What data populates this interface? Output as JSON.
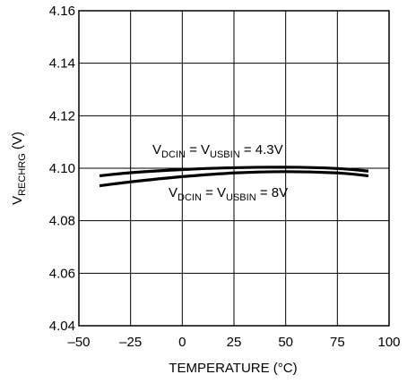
{
  "chart_data": {
    "type": "line",
    "xlabel": "TEMPERATURE (°C)",
    "ylabel": {
      "main": "V",
      "sub": "RECHRG",
      "suffix": " (V)"
    },
    "xlim": [
      -50,
      100
    ],
    "ylim": [
      4.04,
      4.16
    ],
    "xticks": [
      "–50",
      "–25",
      "0",
      "25",
      "50",
      "75",
      "100"
    ],
    "yticks": [
      "4.04",
      "4.06",
      "4.08",
      "4.10",
      "4.12",
      "4.14",
      "4.16"
    ],
    "grid": true,
    "series": [
      {
        "name": "V_DCIN = V_USBIN = 4.3V",
        "x": [
          -40,
          -25,
          0,
          25,
          50,
          75,
          90
        ],
        "y": [
          4.0971,
          4.0983,
          4.0995,
          4.1002,
          4.1004,
          4.0999,
          4.0989
        ]
      },
      {
        "name": "V_DCIN = V_USBIN = 8V",
        "x": [
          -40,
          -25,
          0,
          25,
          50,
          75,
          90
        ],
        "y": [
          4.0933,
          4.0948,
          4.0968,
          4.0982,
          4.0987,
          4.0982,
          4.0971
        ]
      }
    ],
    "annotations": [
      {
        "id": "a1",
        "v1": "V",
        "v1sub": "DCIN",
        "eq": " = ",
        "v2": "V",
        "v2sub": "USBIN",
        "rest": " = 4.3V"
      },
      {
        "id": "a2",
        "v1": "V",
        "v1sub": "DCIN",
        "eq": " = ",
        "v2": "V",
        "v2sub": "USBIN",
        "rest": " = 8V"
      }
    ],
    "line_color": "#000000"
  }
}
